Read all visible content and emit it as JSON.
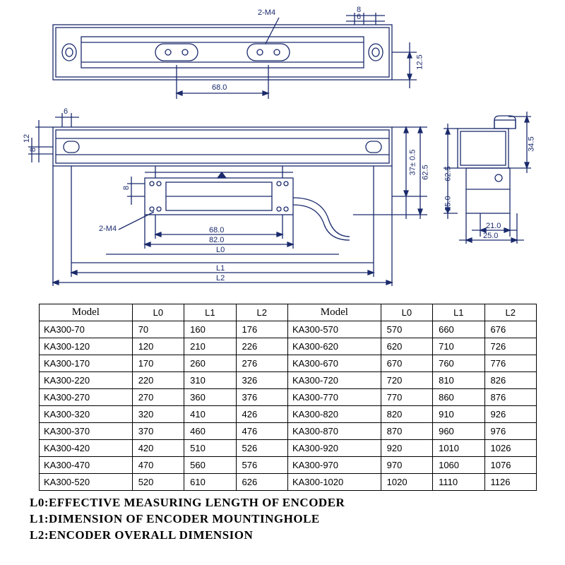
{
  "stroke_color": "#1a2a6c",
  "top_view": {
    "label_2m4": "2-M4",
    "dim_68": "68.0",
    "dim_8": "8",
    "dim_6": "6",
    "dim_12_5": "12.5"
  },
  "front_view": {
    "dim_6": "6",
    "dim_12": "12",
    "dim_8v": "8",
    "dim_8h": "8",
    "label_2m4": "2-M4",
    "dim_68": "68.0",
    "dim_82": "82.0",
    "dim_l0": "L0",
    "dim_l1": "L1",
    "dim_l2": "L2",
    "dim_37": "37± 0.5",
    "dim_62_5": "62.5"
  },
  "side_view": {
    "dim_34_5": "34.5",
    "dim_62_5": "62.5",
    "dim_25v": "25.0",
    "dim_21": "21.0",
    "dim_25h": "25.0"
  },
  "table": {
    "headers": [
      "Model",
      "L0",
      "L1",
      "L2",
      "Model",
      "L0",
      "L1",
      "L2"
    ],
    "rows": [
      [
        "KA300-70",
        "70",
        "160",
        "176",
        "KA300-570",
        "570",
        "660",
        "676"
      ],
      [
        "KA300-120",
        "120",
        "210",
        "226",
        "KA300-620",
        "620",
        "710",
        "726"
      ],
      [
        "KA300-170",
        "170",
        "260",
        "276",
        "KA300-670",
        "670",
        "760",
        "776"
      ],
      [
        "KA300-220",
        "220",
        "310",
        "326",
        "KA300-720",
        "720",
        "810",
        "826"
      ],
      [
        "KA300-270",
        "270",
        "360",
        "376",
        "KA300-770",
        "770",
        "860",
        "876"
      ],
      [
        "KA300-320",
        "320",
        "410",
        "426",
        "KA300-820",
        "820",
        "910",
        "926"
      ],
      [
        "KA300-370",
        "370",
        "460",
        "476",
        "KA300-870",
        "870",
        "960",
        "976"
      ],
      [
        "KA300-420",
        "420",
        "510",
        "526",
        "KA300-920",
        "920",
        "1010",
        "1026"
      ],
      [
        "KA300-470",
        "470",
        "560",
        "576",
        "KA300-970",
        "970",
        "1060",
        "1076"
      ],
      [
        "KA300-520",
        "520",
        "610",
        "626",
        "KA300-1020",
        "1020",
        "1110",
        "1126"
      ]
    ]
  },
  "legend": {
    "l0": "L0:EFFECTIVE MEASURING LENGTH OF ENCODER",
    "l1": "L1:DIMENSION OF ENCODER MOUNTINGHOLE",
    "l2": "L2:ENCODER OVERALL DIMENSION"
  }
}
